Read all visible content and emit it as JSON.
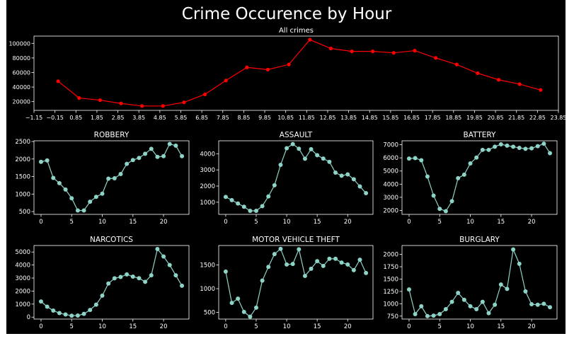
{
  "figure": {
    "title": "Crime Occurence by Hour",
    "background": "#000000",
    "outer_background": "#ffffff",
    "axis_color": "#ffffff",
    "text_color": "#ffffff"
  },
  "chart_data": [
    {
      "type": "line",
      "title": "All crimes",
      "xlabel": "",
      "ylabel": "",
      "color": "#ff0000",
      "marker": "circle",
      "grid": false,
      "x": [
        0,
        1,
        2,
        3,
        4,
        5,
        6,
        7,
        8,
        9,
        10,
        11,
        12,
        13,
        14,
        15,
        16,
        17,
        18,
        19,
        20,
        21,
        22,
        23
      ],
      "values": [
        48000,
        25000,
        22000,
        17500,
        14000,
        14000,
        19000,
        30000,
        49000,
        67000,
        64000,
        71000,
        105000,
        93000,
        89000,
        89000,
        87000,
        90000,
        80000,
        71000,
        59000,
        50000,
        44000,
        36000
      ],
      "xlim": [
        -1.15,
        23.85
      ],
      "ylim": [
        8000,
        110000
      ],
      "xticks": [
        -1.15,
        -0.15,
        0.85,
        1.85,
        2.85,
        3.85,
        4.85,
        5.85,
        6.85,
        7.85,
        8.85,
        9.85,
        10.85,
        11.85,
        12.85,
        13.85,
        14.85,
        15.85,
        16.85,
        17.85,
        18.85,
        19.85,
        20.85,
        21.85,
        22.85,
        23.85
      ],
      "xtick_labels": [
        "−1.15",
        "−0.15",
        "0.85",
        "1.85",
        "2.85",
        "3.85",
        "4.85",
        "5.85",
        "6.85",
        "7.85",
        "8.85",
        "9.85",
        "10.85",
        "11.85",
        "12.85",
        "13.85",
        "14.85",
        "15.85",
        "16.85",
        "17.85",
        "18.85",
        "19.85",
        "20.85",
        "21.85",
        "22.85",
        "23.85"
      ],
      "yticks": [
        20000,
        40000,
        60000,
        80000,
        100000
      ],
      "ytick_labels": [
        "20000",
        "40000",
        "60000",
        "80000",
        "100000"
      ]
    },
    {
      "type": "line",
      "title": "ROBBERY",
      "xlabel": "",
      "ylabel": "",
      "color": "#8dd3c7",
      "marker": "circle",
      "grid": false,
      "x": [
        0,
        1,
        2,
        3,
        4,
        5,
        6,
        7,
        8,
        9,
        10,
        11,
        12,
        13,
        14,
        15,
        16,
        17,
        18,
        19,
        20,
        21,
        22,
        23
      ],
      "values": [
        1920,
        1960,
        1460,
        1310,
        1130,
        880,
        530,
        530,
        780,
        920,
        1010,
        1440,
        1450,
        1570,
        1860,
        1970,
        2030,
        2150,
        2290,
        2060,
        2080,
        2430,
        2380,
        2080
      ],
      "xlim": [
        -1.15,
        24.15
      ],
      "ylim": [
        420,
        2520
      ],
      "xticks": [
        0,
        5,
        10,
        15,
        20
      ],
      "xtick_labels": [
        "0",
        "5",
        "10",
        "15",
        "20"
      ],
      "yticks": [
        500,
        1000,
        1500,
        2000,
        2500
      ],
      "ytick_labels": [
        "500",
        "1000",
        "1500",
        "2000",
        "2500"
      ]
    },
    {
      "type": "line",
      "title": "ASSAULT",
      "xlabel": "",
      "ylabel": "",
      "color": "#8dd3c7",
      "marker": "circle",
      "grid": false,
      "x": [
        0,
        1,
        2,
        3,
        4,
        5,
        6,
        7,
        8,
        9,
        10,
        11,
        12,
        13,
        14,
        15,
        16,
        17,
        18,
        19,
        20,
        21,
        22,
        23
      ],
      "values": [
        1330,
        1130,
        920,
        720,
        470,
        470,
        760,
        1360,
        2050,
        3310,
        4340,
        4600,
        4310,
        3690,
        4280,
        3910,
        3700,
        3500,
        2830,
        2640,
        2720,
        2420,
        1980,
        1560
      ],
      "xlim": [
        -1.15,
        24.15
      ],
      "ylim": [
        250,
        4800
      ],
      "xticks": [
        0,
        5,
        10,
        15,
        20
      ],
      "xtick_labels": [
        "0",
        "5",
        "10",
        "15",
        "20"
      ],
      "yticks": [
        1000,
        2000,
        3000,
        4000
      ],
      "ytick_labels": [
        "1000",
        "2000",
        "3000",
        "4000"
      ]
    },
    {
      "type": "line",
      "title": "BATTERY",
      "xlabel": "",
      "ylabel": "",
      "color": "#8dd3c7",
      "marker": "circle",
      "grid": false,
      "x": [
        0,
        1,
        2,
        3,
        4,
        5,
        6,
        7,
        8,
        9,
        10,
        11,
        12,
        13,
        14,
        15,
        16,
        17,
        18,
        19,
        20,
        21,
        22,
        23
      ],
      "values": [
        5950,
        5980,
        5820,
        4580,
        3130,
        2120,
        1940,
        2700,
        4450,
        4720,
        5580,
        6020,
        6610,
        6610,
        6850,
        7030,
        6930,
        6850,
        6760,
        6690,
        6730,
        6890,
        7080,
        6360
      ],
      "xlim": [
        -1.15,
        24.15
      ],
      "ylim": [
        1700,
        7300
      ],
      "xticks": [
        0,
        5,
        10,
        15,
        20
      ],
      "xtick_labels": [
        "0",
        "5",
        "10",
        "15",
        "20"
      ],
      "yticks": [
        2000,
        3000,
        4000,
        5000,
        6000,
        7000
      ],
      "ytick_labels": [
        "2000",
        "3000",
        "4000",
        "5000",
        "6000",
        "7000"
      ]
    },
    {
      "type": "line",
      "title": "NARCOTICS",
      "xlabel": "",
      "ylabel": "",
      "color": "#8dd3c7",
      "marker": "circle",
      "grid": false,
      "x": [
        0,
        1,
        2,
        3,
        4,
        5,
        6,
        7,
        8,
        9,
        10,
        11,
        12,
        13,
        14,
        15,
        16,
        17,
        18,
        19,
        20,
        21,
        22,
        23
      ],
      "values": [
        1200,
        800,
        500,
        310,
        200,
        110,
        120,
        250,
        550,
        960,
        1650,
        2580,
        2980,
        3080,
        3280,
        3110,
        2990,
        2710,
        3210,
        5230,
        4660,
        4000,
        3210,
        2410
      ],
      "xlim": [
        -1.15,
        24.15
      ],
      "ylim": [
        -150,
        5500
      ],
      "xticks": [
        0,
        5,
        10,
        15,
        20
      ],
      "xtick_labels": [
        "0",
        "5",
        "10",
        "15",
        "20"
      ],
      "yticks": [
        0,
        1000,
        2000,
        3000,
        4000,
        5000
      ],
      "ytick_labels": [
        "0",
        "1000",
        "2000",
        "3000",
        "4000",
        "5000"
      ]
    },
    {
      "type": "line",
      "title": "MOTOR VEHICLE THEFT",
      "xlabel": "",
      "ylabel": "",
      "color": "#8dd3c7",
      "marker": "circle",
      "grid": false,
      "x": [
        0,
        1,
        2,
        3,
        4,
        5,
        6,
        7,
        8,
        9,
        10,
        11,
        12,
        13,
        14,
        15,
        16,
        17,
        18,
        19,
        20,
        21,
        22,
        23
      ],
      "values": [
        1360,
        700,
        790,
        510,
        410,
        600,
        1170,
        1460,
        1730,
        1840,
        1510,
        1520,
        1830,
        1270,
        1420,
        1580,
        1480,
        1630,
        1630,
        1550,
        1510,
        1390,
        1610,
        1330
      ],
      "xlim": [
        -1.15,
        24.15
      ],
      "ylim": [
        360,
        1910
      ],
      "xticks": [
        0,
        5,
        10,
        15,
        20
      ],
      "xtick_labels": [
        "0",
        "5",
        "10",
        "15",
        "20"
      ],
      "yticks": [
        500,
        1000,
        1500
      ],
      "ytick_labels": [
        "500",
        "1000",
        "1500"
      ]
    },
    {
      "type": "line",
      "title": "BURGLARY",
      "xlabel": "",
      "ylabel": "",
      "color": "#8dd3c7",
      "marker": "circle",
      "grid": false,
      "x": [
        0,
        1,
        2,
        3,
        4,
        5,
        6,
        7,
        8,
        9,
        10,
        11,
        12,
        13,
        14,
        15,
        16,
        17,
        18,
        19,
        20,
        21,
        22,
        23
      ],
      "values": [
        1290,
        790,
        950,
        750,
        760,
        790,
        890,
        1040,
        1220,
        1080,
        950,
        890,
        1040,
        810,
        980,
        1390,
        1300,
        2100,
        1810,
        1250,
        990,
        980,
        1000,
        930
      ],
      "xlim": [
        -1.15,
        24.15
      ],
      "ylim": [
        690,
        2180
      ],
      "xticks": [
        0,
        5,
        10,
        15,
        20
      ],
      "xtick_labels": [
        "0",
        "5",
        "10",
        "15",
        "20"
      ],
      "yticks": [
        750,
        1000,
        1250,
        1500,
        1750,
        2000
      ],
      "ytick_labels": [
        "750",
        "1000",
        "1250",
        "1500",
        "1750",
        "2000"
      ]
    }
  ]
}
